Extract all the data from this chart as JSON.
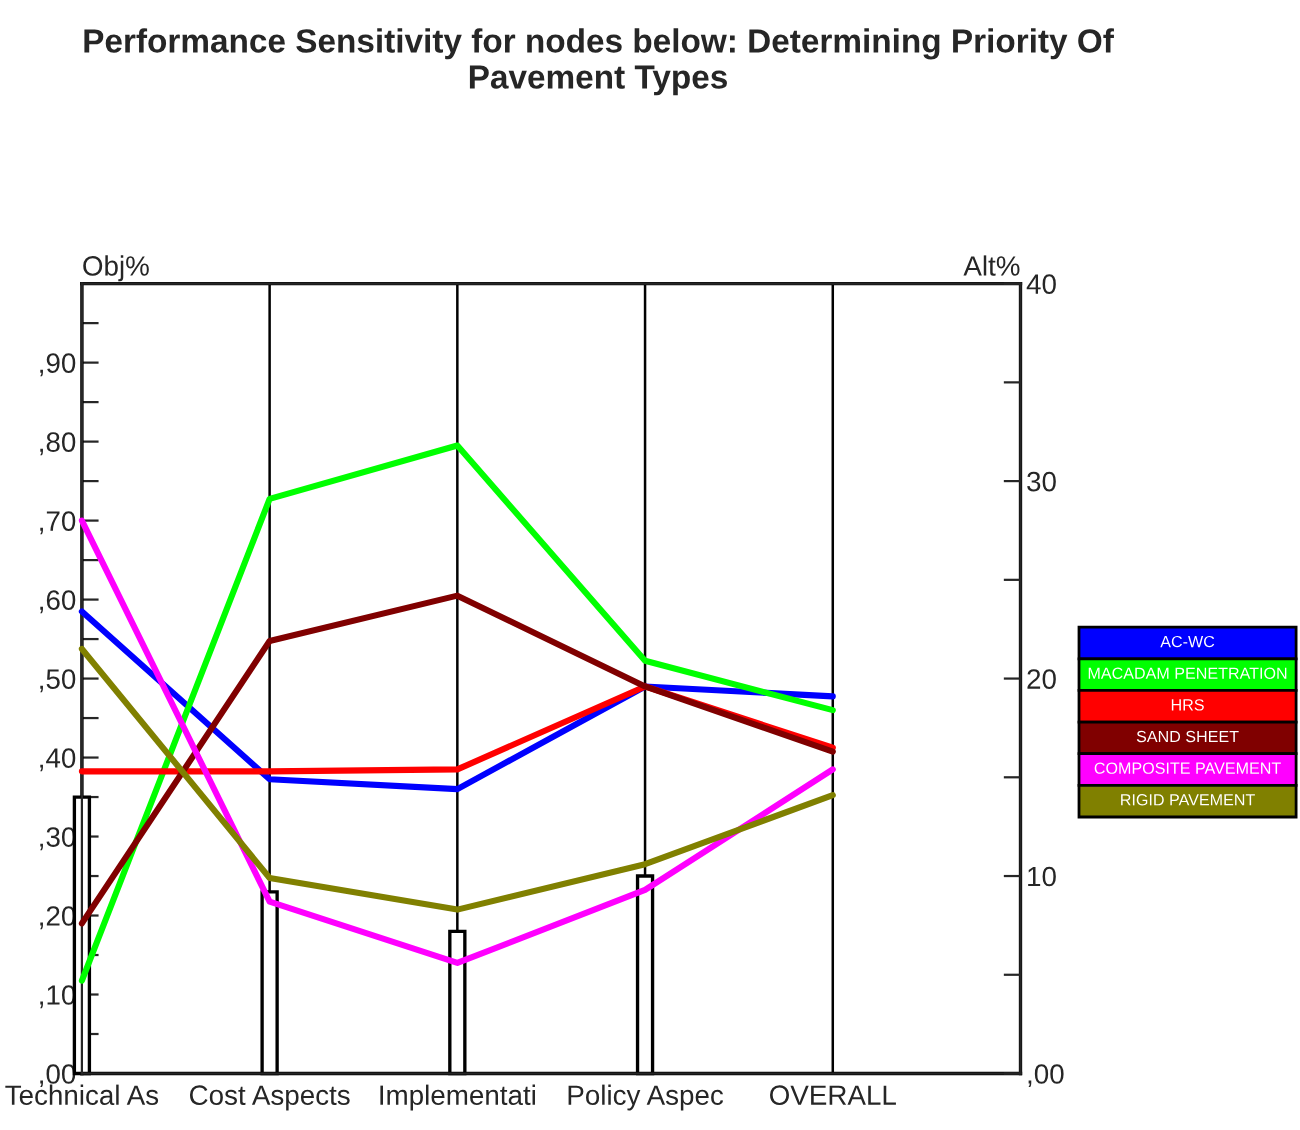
{
  "chart_data": {
    "type": "line",
    "title": "Performance Sensitivity for nodes below: Determining Priority Of\nPavement Types",
    "ylabel": "Obj%",
    "y2label": "Alt%",
    "categories": [
      "Technical As",
      "Cost Aspects",
      "Implementati",
      "Policy Aspec",
      "OVERALL"
    ],
    "series": [
      {
        "type": "bar",
        "color": "#ffffff",
        "values": [
          35,
          23,
          18,
          25,
          null
        ]
      },
      {
        "name": "AC-WC",
        "color": "#0000ff",
        "axis": "y2",
        "values": [
          23.4,
          14.9,
          14.4,
          19.6,
          19.1
        ]
      },
      {
        "name": "MACADAM PENETRATION",
        "color": "#00ff00",
        "axis": "y2",
        "values": [
          4.7,
          29.1,
          31.8,
          20.9,
          18.4
        ]
      },
      {
        "name": "HRS",
        "color": "#ff0000",
        "axis": "y2",
        "values": [
          15.3,
          15.3,
          15.4,
          19.6,
          16.5
        ]
      },
      {
        "name": "SAND SHEET",
        "color": "#800000",
        "axis": "y2",
        "values": [
          7.6,
          21.9,
          24.2,
          19.6,
          16.3
        ]
      },
      {
        "name": "COMPOSITE PAVEMENT",
        "color": "#ff00ff",
        "axis": "y2",
        "values": [
          28.0,
          8.7,
          5.6,
          9.3,
          15.4
        ]
      },
      {
        "name": "RIGID PAVEMENT",
        "color": "#808000",
        "axis": "y2",
        "values": [
          21.5,
          9.9,
          8.3,
          10.6,
          14.1
        ]
      }
    ],
    "ylim": [
      0,
      100
    ],
    "yticks": [
      {
        "value": 0,
        "label": ",00"
      },
      {
        "value": 5,
        "label": null
      },
      {
        "value": 10,
        "label": ",10"
      },
      {
        "value": 15,
        "label": null
      },
      {
        "value": 20,
        "label": ",20"
      },
      {
        "value": 25,
        "label": null
      },
      {
        "value": 30,
        "label": ",30"
      },
      {
        "value": 35,
        "label": null
      },
      {
        "value": 40,
        "label": ",40"
      },
      {
        "value": 45,
        "label": null
      },
      {
        "value": 50,
        "label": ",50"
      },
      {
        "value": 55,
        "label": null
      },
      {
        "value": 60,
        "label": ",60"
      },
      {
        "value": 65,
        "label": null
      },
      {
        "value": 70,
        "label": ",70"
      },
      {
        "value": 75,
        "label": null
      },
      {
        "value": 80,
        "label": ",80"
      },
      {
        "value": 85,
        "label": null
      },
      {
        "value": 90,
        "label": ",90"
      },
      {
        "value": 95,
        "label": null
      }
    ],
    "y2lim": [
      0,
      40
    ],
    "y2ticks": [
      {
        "value": 0,
        "label": ",00"
      },
      {
        "value": 5,
        "label": null
      },
      {
        "value": 10,
        "label": "10"
      },
      {
        "value": 15,
        "label": null
      },
      {
        "value": 20,
        "label": "20"
      },
      {
        "value": 25,
        "label": null
      },
      {
        "value": 30,
        "label": "30"
      },
      {
        "value": 35,
        "label": null
      },
      {
        "value": 40,
        "label": "40"
      }
    ],
    "grid": "x",
    "legend": "right",
    "line_style": "solid",
    "marker": "none"
  }
}
